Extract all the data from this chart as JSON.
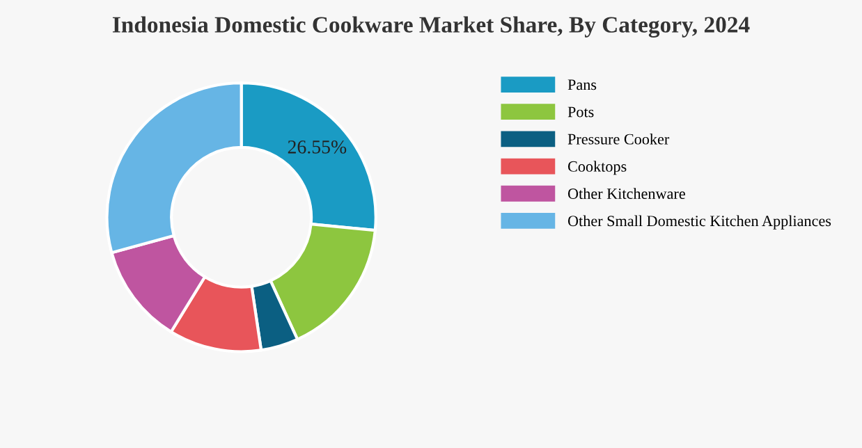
{
  "chart_data": {
    "type": "donut",
    "title": "Indonesia Domestic Cookware Market Share, By Category, 2024",
    "categories": [
      "Pans",
      "Pots",
      "Pressure Cooker",
      "Cooktops",
      "Other Kitchenware",
      "Other Small Domestic Kitchen Appliances"
    ],
    "values": [
      26.55,
      16.6,
      4.5,
      11.1,
      12.0,
      29.25
    ],
    "colors": [
      "#1a9bc4",
      "#8dc63f",
      "#0b5f82",
      "#e8555a",
      "#bf55a0",
      "#66b5e5"
    ],
    "value_labels": [
      "26.55%",
      null,
      null,
      null,
      null,
      null
    ],
    "legend": "right"
  }
}
